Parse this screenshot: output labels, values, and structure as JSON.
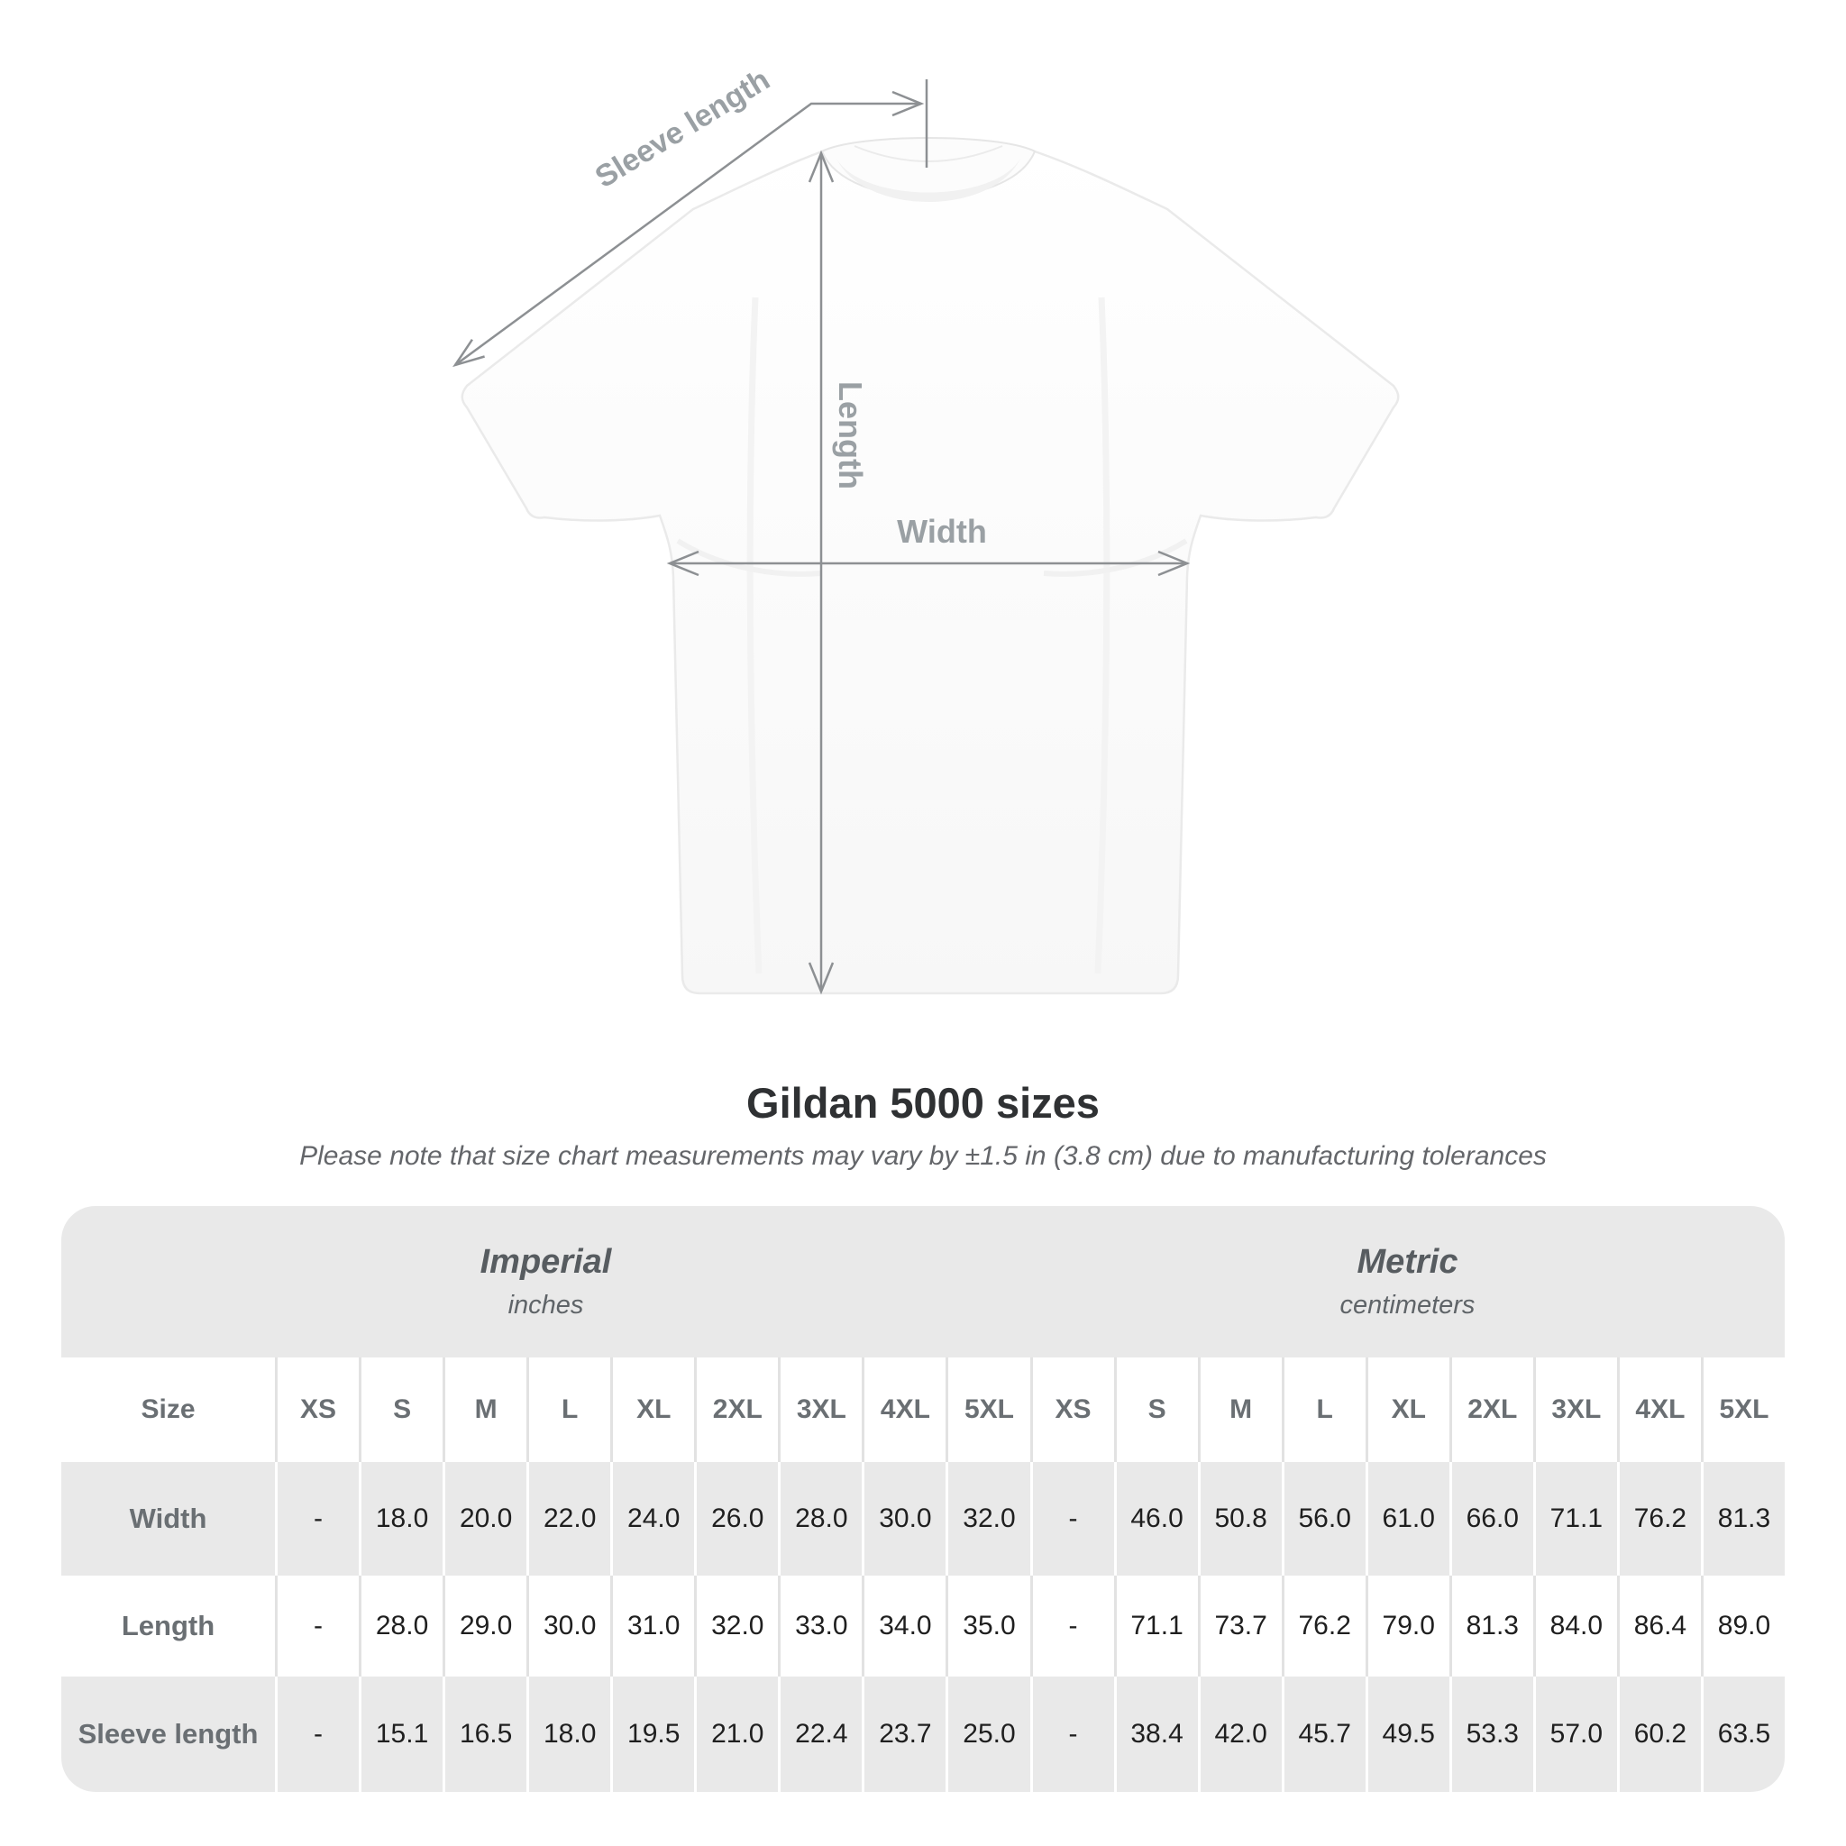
{
  "shirt_diagram": {
    "labels": {
      "sleeve_length": "Sleeve length",
      "length": "Length",
      "width": "Width"
    },
    "annotation_color": "#8d9093",
    "label_color": "#9aa0a4"
  },
  "title": "Gildan 5000 sizes",
  "subtitle": "Please note that size chart measurements may vary by ±1.5 in (3.8 cm) due to manufacturing tolerances",
  "table": {
    "unit_groups": [
      {
        "name": "Imperial",
        "unit": "inches"
      },
      {
        "name": "Metric",
        "unit": "centimeters"
      }
    ],
    "size_header_label": "Size",
    "sizes": [
      "XS",
      "S",
      "M",
      "L",
      "XL",
      "2XL",
      "3XL",
      "4XL",
      "5XL"
    ],
    "rows": [
      {
        "label": "Width",
        "imperial": [
          "-",
          "18.0",
          "20.0",
          "22.0",
          "24.0",
          "26.0",
          "28.0",
          "30.0",
          "32.0"
        ],
        "metric": [
          "-",
          "46.0",
          "50.8",
          "56.0",
          "61.0",
          "66.0",
          "71.1",
          "76.2",
          "81.3"
        ]
      },
      {
        "label": "Length",
        "imperial": [
          "-",
          "28.0",
          "29.0",
          "30.0",
          "31.0",
          "32.0",
          "33.0",
          "34.0",
          "35.0"
        ],
        "metric": [
          "-",
          "71.1",
          "73.7",
          "76.2",
          "79.0",
          "81.3",
          "84.0",
          "86.4",
          "89.0"
        ]
      },
      {
        "label": "Sleeve length",
        "imperial": [
          "-",
          "15.1",
          "16.5",
          "18.0",
          "19.5",
          "21.0",
          "22.4",
          "23.7",
          "25.0"
        ],
        "metric": [
          "-",
          "38.4",
          "42.0",
          "45.7",
          "49.5",
          "53.3",
          "57.0",
          "60.2",
          "63.5"
        ]
      }
    ]
  },
  "colors": {
    "table_band": "#e9e9e9",
    "separator_on_white": "#e2e2e2",
    "separator_on_gray": "#ffffff",
    "title_text": "#2f3133",
    "subtitle_text": "#64666a",
    "header_text": "#6a6f73",
    "value_text": "#1f1f1f"
  }
}
